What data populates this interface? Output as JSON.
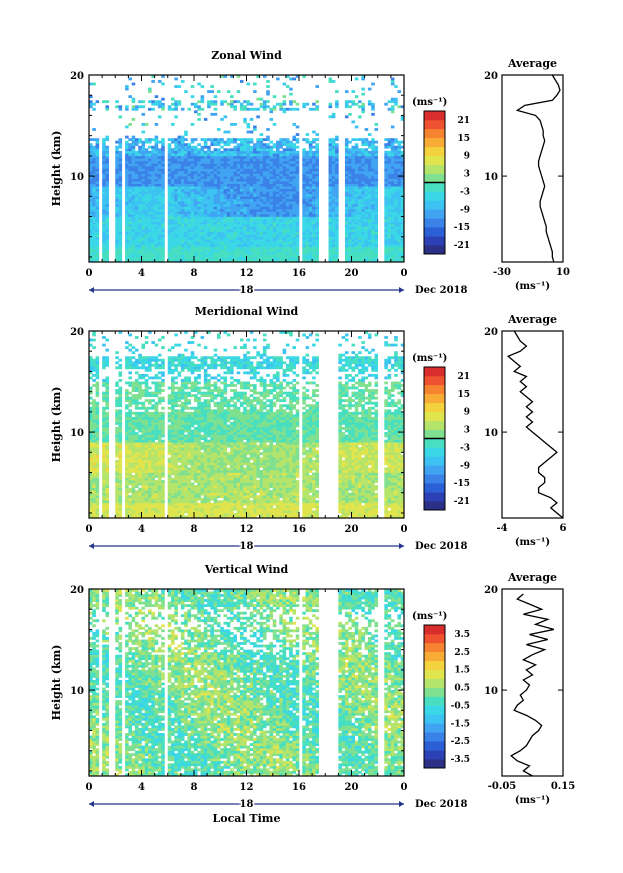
{
  "chart_data": [
    {
      "type": "heatmap",
      "title": "Zonal Wind",
      "ylabel": "Height (km)",
      "xlabel": "",
      "x_ticks": [
        "0",
        "4",
        "8",
        "12",
        "16",
        "20",
        "0"
      ],
      "y_ticks": [
        "20",
        "10"
      ],
      "xlim": [
        0,
        24
      ],
      "ylim": [
        1.5,
        20
      ],
      "date_label": "18",
      "month_label": "Dec 2018",
      "colorbar": {
        "unit": "(ms⁻¹)",
        "ticks": [
          "21",
          "15",
          "9",
          "3",
          "-3",
          "-9",
          "-15",
          "-21"
        ],
        "range": [
          -24,
          24
        ],
        "zero_line": true
      },
      "gap_hours": [
        [
          0.8,
          1.1
        ],
        [
          1.55,
          2.0
        ],
        [
          2.5,
          2.8
        ],
        [
          5.7,
          6.0
        ],
        [
          15.9,
          16.2
        ],
        [
          17.4,
          18.3
        ],
        [
          19.0,
          19.5
        ],
        [
          22.1,
          22.4
        ]
      ],
      "profile": {
        "title": "Average",
        "xlabel": "(ms⁻¹)",
        "x_ticks": [
          "-30",
          "10"
        ],
        "xlim": [
          -30,
          10
        ],
        "y_ticks": [
          "20",
          "10"
        ],
        "heights": [
          20,
          19,
          18.5,
          18,
          17.5,
          17,
          16.5,
          16,
          15.5,
          15,
          14.5,
          14,
          13.5,
          13,
          12.5,
          12,
          11.5,
          11,
          10.5,
          10,
          9.5,
          9,
          8.5,
          8,
          7.5,
          7,
          6.5,
          6,
          5.5,
          5,
          4.5,
          4,
          3.5,
          3,
          2.5,
          2,
          1.5
        ],
        "values": [
          3,
          7,
          8,
          6,
          3,
          -15,
          -20,
          -8,
          -5,
          -4,
          -3,
          -3,
          -2,
          -3,
          -4,
          -5,
          -6,
          -6,
          -5,
          -4,
          -3,
          -2,
          -3,
          -4,
          -5,
          -5,
          -4,
          -3,
          -2,
          -1,
          -1,
          0,
          1,
          2,
          3,
          3,
          4
        ]
      }
    },
    {
      "type": "heatmap",
      "title": "Meridional Wind",
      "ylabel": "Height (km)",
      "xlabel": "",
      "x_ticks": [
        "0",
        "4",
        "8",
        "12",
        "16",
        "20",
        "0"
      ],
      "y_ticks": [
        "20",
        "10"
      ],
      "xlim": [
        0,
        24
      ],
      "ylim": [
        1.5,
        20
      ],
      "date_label": "18",
      "month_label": "Dec 2018",
      "colorbar": {
        "unit": "(ms⁻¹)",
        "ticks": [
          "21",
          "15",
          "9",
          "3",
          "-3",
          "-9",
          "-15",
          "-21"
        ],
        "range": [
          -24,
          24
        ],
        "zero_line": true
      },
      "gap_hours": [
        [
          0.8,
          1.1
        ],
        [
          1.55,
          2.0
        ],
        [
          2.5,
          2.8
        ],
        [
          5.7,
          6.0
        ],
        [
          15.9,
          16.2
        ],
        [
          17.4,
          19.0
        ],
        [
          22.1,
          22.4
        ]
      ],
      "profile": {
        "title": "Average",
        "xlabel": "(ms⁻¹)",
        "x_ticks": [
          "-4",
          "6"
        ],
        "xlim": [
          -4,
          6
        ],
        "y_ticks": [
          "20",
          "10"
        ],
        "heights": [
          20,
          19,
          18.5,
          18,
          17.5,
          17,
          16.5,
          16,
          15.5,
          15,
          14.5,
          14,
          13.5,
          13,
          12.5,
          12,
          11.5,
          11,
          10.5,
          10,
          9.5,
          9,
          8.5,
          8,
          7.5,
          7,
          6.5,
          6,
          5.5,
          5,
          4.5,
          4,
          3.5,
          3,
          2.5,
          2,
          1.5
        ],
        "values": [
          -2,
          -1,
          0,
          -1,
          -3,
          -2,
          -1,
          -2,
          0,
          -1,
          0,
          -1,
          0,
          1,
          0,
          1,
          0,
          1,
          0,
          1,
          2,
          3,
          4,
          5,
          4,
          3,
          2,
          2,
          3,
          3,
          2,
          2,
          4,
          5,
          4,
          5,
          6
        ]
      }
    },
    {
      "type": "heatmap",
      "title": "Vertical Wind",
      "ylabel": "Height (km)",
      "xlabel": "Local Time",
      "x_ticks": [
        "0",
        "4",
        "8",
        "12",
        "16",
        "20",
        "0"
      ],
      "y_ticks": [
        "20",
        "10"
      ],
      "xlim": [
        0,
        24
      ],
      "ylim": [
        1.5,
        20
      ],
      "date_label": "18",
      "month_label": "Dec 2018",
      "colorbar": {
        "unit": "(ms⁻¹)",
        "ticks": [
          "3.5",
          "2.5",
          "1.5",
          "0.5",
          "-0.5",
          "-1.5",
          "-2.5",
          "-3.5"
        ],
        "range": [
          -4,
          4
        ],
        "zero_line": false
      },
      "gap_hours": [
        [
          0.8,
          1.1
        ],
        [
          1.55,
          2.0
        ],
        [
          2.5,
          2.8
        ],
        [
          5.7,
          6.0
        ],
        [
          15.9,
          16.2
        ],
        [
          17.4,
          19.0
        ],
        [
          22.1,
          22.4
        ]
      ],
      "profile": {
        "title": "Average",
        "xlabel": "(ms⁻¹)",
        "x_ticks": [
          "-0.05",
          "0.15"
        ],
        "xlim": [
          -0.05,
          0.15
        ],
        "y_ticks": [
          "20",
          "10"
        ],
        "heights": [
          19.5,
          19,
          18.5,
          18,
          17.5,
          17,
          16.5,
          16,
          15.5,
          15,
          14.5,
          14,
          13.5,
          13,
          12.5,
          12,
          11.5,
          11,
          10.5,
          10,
          9.5,
          9,
          8.5,
          8,
          7.5,
          7,
          6.5,
          6,
          5.5,
          5,
          4.5,
          4,
          3.5,
          3,
          2.5,
          2,
          1.5
        ],
        "values": [
          0.02,
          0.0,
          0.04,
          0.08,
          0.02,
          0.1,
          0.06,
          0.12,
          0.04,
          0.1,
          0.03,
          0.09,
          0.05,
          0.02,
          0.06,
          0.03,
          0.05,
          0.02,
          0.04,
          0.03,
          0.01,
          0.02,
          0.0,
          -0.01,
          0.03,
          0.06,
          0.08,
          0.07,
          0.05,
          0.04,
          0.03,
          0.01,
          -0.02,
          0.0,
          0.04,
          0.02,
          0.05
        ]
      }
    }
  ]
}
